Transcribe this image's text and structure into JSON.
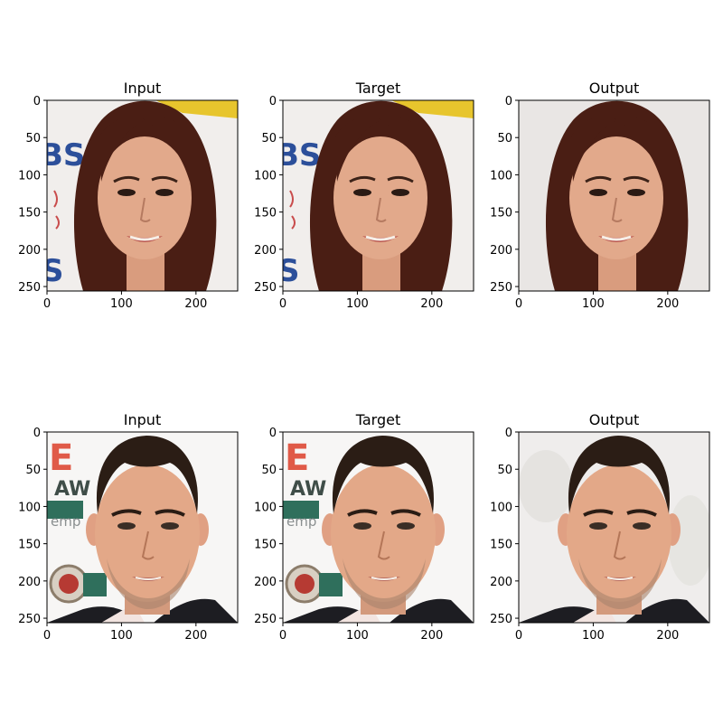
{
  "figure": {
    "rows": [
      {
        "subject": "woman",
        "panels": [
          {
            "title": "Input",
            "variant": "input"
          },
          {
            "title": "Target",
            "variant": "target"
          },
          {
            "title": "Output",
            "variant": "output"
          }
        ]
      },
      {
        "subject": "man",
        "panels": [
          {
            "title": "Input",
            "variant": "input"
          },
          {
            "title": "Target",
            "variant": "target"
          },
          {
            "title": "Output",
            "variant": "output"
          }
        ]
      }
    ],
    "x_ticks": [
      0,
      100,
      200
    ],
    "y_ticks": [
      0,
      50,
      100,
      150,
      200,
      250
    ],
    "axis_range": [
      0,
      256
    ]
  },
  "colors": {
    "woman_hair": "#4a1e14",
    "woman_skin": "#e2a98b",
    "man_hair": "#2b1d15",
    "man_skin": "#e3a888",
    "suit": "#1d1d22",
    "background_light": "#f2f0ee"
  }
}
